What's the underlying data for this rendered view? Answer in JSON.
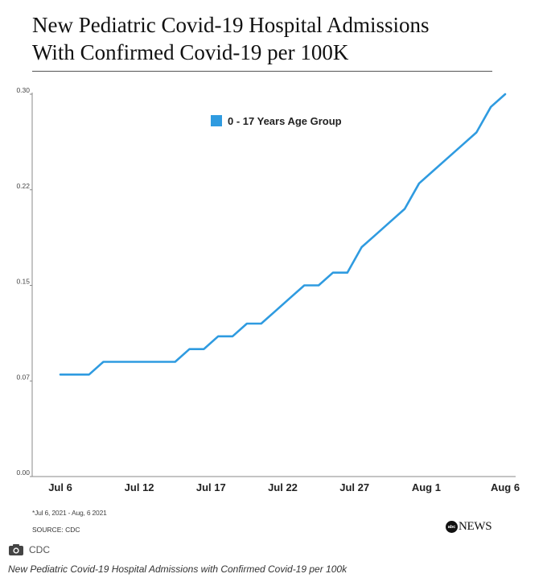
{
  "title_line1": "New Pediatric Covid-19 Hospital Admissions",
  "title_line2": "With Confirmed Covid-19 per 100K",
  "chart_data": {
    "type": "line",
    "x": [
      "Jul 6",
      "Jul 7",
      "Jul 8",
      "Jul 9",
      "Jul 10",
      "Jul 11",
      "Jul 12",
      "Jul 13",
      "Jul 14",
      "Jul 15",
      "Jul 16",
      "Jul 17",
      "Jul 18",
      "Jul 19",
      "Jul 20",
      "Jul 21",
      "Jul 22",
      "Jul 23",
      "Jul 24",
      "Jul 25",
      "Jul 26",
      "Jul 27",
      "Jul 28",
      "Jul 29",
      "Jul 30",
      "Jul 31",
      "Aug 1",
      "Aug 2",
      "Aug 3",
      "Aug 4",
      "Aug 5",
      "Aug 6"
    ],
    "series": [
      {
        "name": "0 - 17 Years Age Group",
        "color": "#2f9be0",
        "values": [
          0.08,
          0.08,
          0.08,
          0.09,
          0.09,
          0.09,
          0.09,
          0.09,
          0.09,
          0.1,
          0.1,
          0.11,
          0.11,
          0.12,
          0.12,
          0.13,
          0.14,
          0.15,
          0.15,
          0.16,
          0.16,
          0.18,
          0.19,
          0.2,
          0.21,
          0.23,
          0.24,
          0.25,
          0.26,
          0.27,
          0.29,
          0.3
        ]
      }
    ],
    "y_ticks": [
      "0.00",
      "0.07",
      "0.15",
      "0.22",
      "0.30"
    ],
    "y_tick_values": [
      0.0,
      0.075,
      0.15,
      0.225,
      0.3
    ],
    "ylim": [
      0,
      0.3
    ],
    "x_tick_labels": [
      "Jul 6",
      "Jul 12",
      "Jul 17",
      "Jul 22",
      "Jul 27",
      "Aug 1",
      "Aug 6"
    ],
    "x_tick_index": [
      0,
      5.5,
      10.5,
      15.5,
      20.5,
      25.5,
      31
    ],
    "legend_position": "top-center",
    "grid": false
  },
  "footnote": "*Jul 6, 2021 - Aug, 6 2021",
  "source": "SOURCE: CDC",
  "logo": {
    "abc": "abc",
    "news": "NEWS"
  },
  "credit": {
    "icon": "camera-icon",
    "text": "CDC"
  },
  "caption": "New Pediatric Covid-19 Hospital Admissions with Confirmed Covid-19 per 100k"
}
